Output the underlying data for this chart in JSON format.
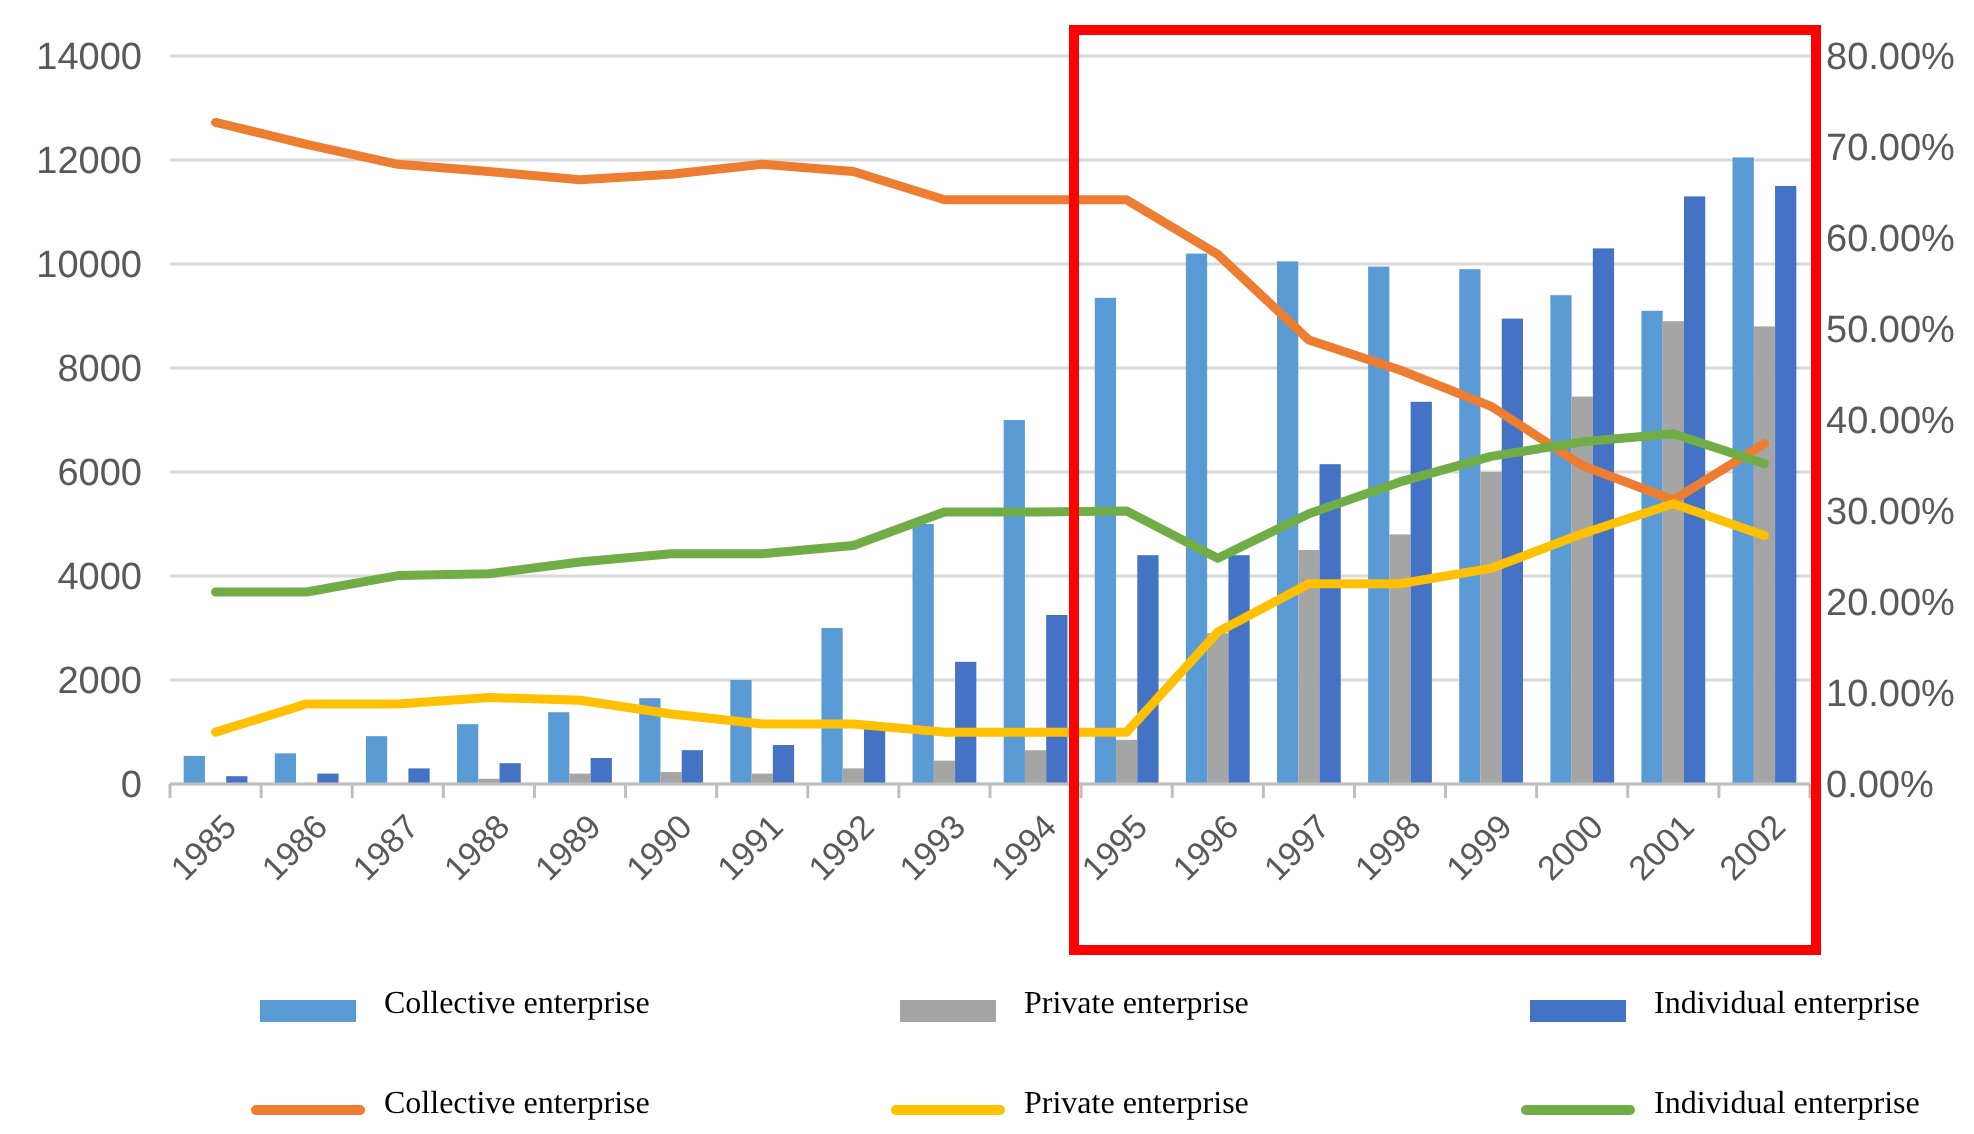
{
  "chart_data": {
    "type": "bar",
    "categories": [
      "1985",
      "1986",
      "1987",
      "1988",
      "1989",
      "1990",
      "1991",
      "1992",
      "1993",
      "1994",
      "1995",
      "1996",
      "1997",
      "1998",
      "1999",
      "2000",
      "2001",
      "2002"
    ],
    "series": [
      {
        "name": "Collective enterprise",
        "color": "#5b9bd5",
        "values": [
          540,
          590,
          920,
          1150,
          1380,
          1650,
          2000,
          3000,
          5000,
          7000,
          9350,
          10200,
          10050,
          9950,
          9900,
          9400,
          9100,
          12050
        ]
      },
      {
        "name": "Private enterprise",
        "color": "#a5a5a5",
        "values": [
          20,
          null,
          null,
          100,
          200,
          230,
          200,
          300,
          450,
          650,
          850,
          2900,
          4500,
          4800,
          6000,
          7450,
          8900,
          8800
        ]
      },
      {
        "name": "Individual enterprise",
        "color": "#4472c4",
        "values": [
          150,
          200,
          300,
          400,
          500,
          650,
          750,
          1100,
          2350,
          3250,
          4400,
          4400,
          6150,
          7350,
          8950,
          10300,
          11300,
          11500
        ]
      },
      {
        "name": "Collective enterprise",
        "type": "line",
        "axis": "y2",
        "color": "#ed7d31",
        "values": [
          72.7,
          70.3,
          68.1,
          67.3,
          66.4,
          67,
          68.1,
          67.3,
          64.2,
          64.2,
          64.2,
          58.2,
          48.8,
          45.5,
          41.5,
          35,
          31.2,
          37.4
        ]
      },
      {
        "name": "Private enterprise",
        "type": "line",
        "axis": "y2",
        "color": "#ffc000",
        "values": [
          5.7,
          8.8,
          8.8,
          9.5,
          9.2,
          7.7,
          6.6,
          6.6,
          5.7,
          5.7,
          5.7,
          16.7,
          22,
          22,
          23.7,
          27.5,
          30.8,
          27.3
        ]
      },
      {
        "name": "Individual enterprise",
        "type": "line",
        "axis": "y2",
        "color": "#70ad47",
        "values": [
          21.1,
          21.1,
          22.9,
          23.1,
          24.4,
          25.3,
          25.3,
          26.2,
          29.9,
          29.9,
          30,
          24.8,
          29.7,
          33.2,
          36,
          37.6,
          38.5,
          35.2
        ]
      }
    ],
    "ylim": [
      0,
      14000
    ],
    "yticks": [
      0,
      2000,
      4000,
      6000,
      8000,
      10000,
      12000,
      14000
    ],
    "y2lim": [
      0,
      80
    ],
    "y2ticks": [
      {
        "value": 0,
        "label": "0.00%"
      },
      {
        "value": 10,
        "label": "10.00%"
      },
      {
        "value": 20,
        "label": "20.00%"
      },
      {
        "value": 30,
        "label": "30.00%"
      },
      {
        "value": 40,
        "label": "40.00%"
      },
      {
        "value": 50,
        "label": "50.00%"
      },
      {
        "value": 60,
        "label": "60.00%"
      },
      {
        "value": 70,
        "label": "70.00%"
      },
      {
        "value": 80,
        "label": "80.00%"
      }
    ],
    "grid": "y",
    "legend": "bottom",
    "marker": "none",
    "line_style": "solid"
  }
}
